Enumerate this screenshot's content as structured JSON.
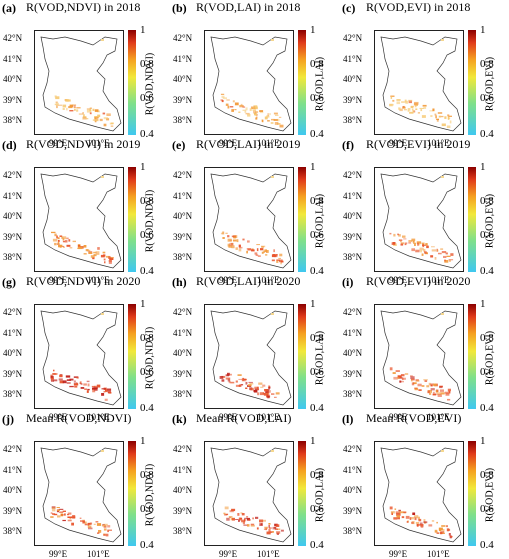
{
  "panels": [
    {
      "label": "(a)",
      "title": "R(VOD,NDVI) in 2018",
      "cbar_title": "R(VOD,NDVI)",
      "level": 0.3
    },
    {
      "label": "(b)",
      "title": "R(VOD,LAI) in 2018",
      "cbar_title": "R(VOD,LAI)",
      "level": 0.3
    },
    {
      "label": "(c)",
      "title": "R(VOD,EVI) in 2018",
      "cbar_title": "R(VOD,EVI)",
      "level": 0.3
    },
    {
      "label": "(d)",
      "title": "R(VOD,NDVI) in 2019",
      "cbar_title": "R(VOD,NDVI)",
      "level": 0.5
    },
    {
      "label": "(e)",
      "title": "R(VOD,LAI) in 2019",
      "cbar_title": "R(VOD,LAI)",
      "level": 0.5
    },
    {
      "label": "(f)",
      "title": "R(VOD,EVI) in 2019",
      "cbar_title": "R(VOD,EVI)",
      "level": 0.45
    },
    {
      "label": "(g)",
      "title": "R(VOD,NDVI) in 2020",
      "cbar_title": "R(VOD,NDVI)",
      "level": 0.75
    },
    {
      "label": "(h)",
      "title": "R(VOD,LAI) in 2020",
      "cbar_title": "R(VOD,LAI)",
      "level": 0.7
    },
    {
      "label": "(i)",
      "title": "R(VOD,EVI) in 2020",
      "cbar_title": "R(VOD,EVI)",
      "level": 0.6
    },
    {
      "label": "(j)",
      "title": "Mean R(VOD,NDVI)",
      "cbar_title": "R(VOD,NDVI)",
      "level": 0.6
    },
    {
      "label": "(k)",
      "title": "Mean R(VOD,LAI)",
      "cbar_title": "R(VOD,LAI)",
      "level": 0.6
    },
    {
      "label": "(l)",
      "title": "Mean R(VOD,EVI)",
      "cbar_title": "R(VOD,EVI)",
      "level": 0.55
    }
  ],
  "lat_labels": [
    "42°N",
    "41°N",
    "40°N",
    "39°N",
    "38°N"
  ],
  "lon_labels": [
    "99°E",
    "101°E"
  ],
  "cbar_ticks": [
    "1",
    "0.8",
    "0.6",
    "0.4"
  ],
  "colors": {
    "low": "#3fc8f0",
    "mid": "#f2e83a",
    "high": "#e03a1a",
    "max": "#8b0000",
    "boundary": "#333333"
  }
}
